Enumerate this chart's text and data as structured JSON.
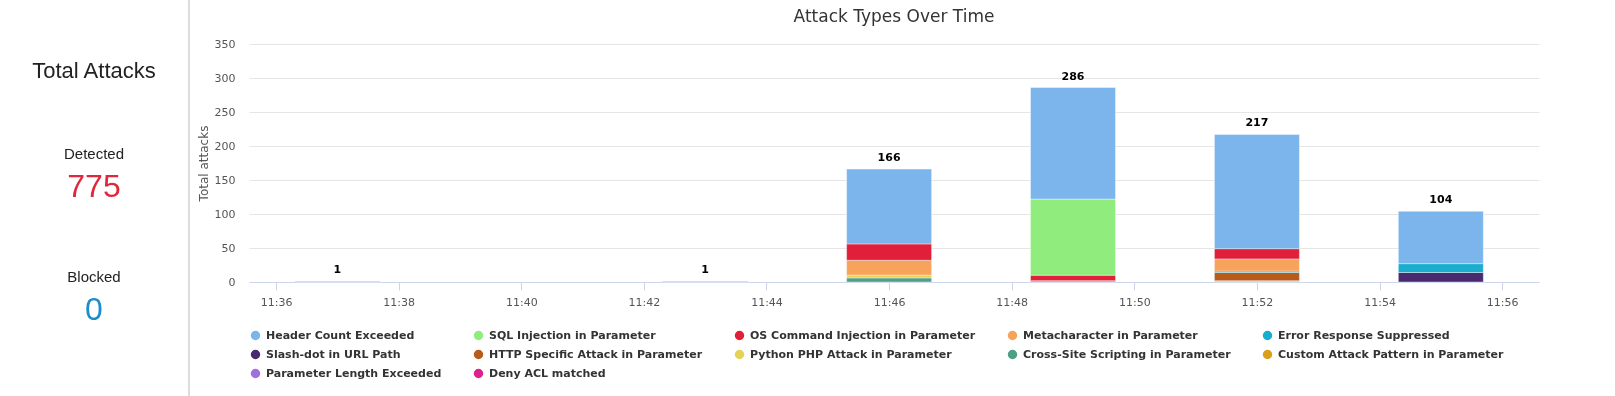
{
  "chart_data": [
    {
      "type": "other",
      "title": "Total Attacks",
      "annotations": [
        "Detected",
        "775",
        "Blocked",
        "0"
      ]
    },
    {
      "type": "bar",
      "title": "Attack Types Over Time",
      "ylabel": "Total attacks",
      "stacked": true,
      "x": [
        11.61667,
        11.71667,
        11.76667,
        11.81667,
        11.86667,
        11.91667
      ],
      "xlim": [
        11.594,
        11.942
      ],
      "xticks": [
        {
          "value": 11.6,
          "label": "11:36"
        },
        {
          "value": 11.63333,
          "label": "11:38"
        },
        {
          "value": 11.66667,
          "label": "11:40"
        },
        {
          "value": 11.7,
          "label": "11:42"
        },
        {
          "value": 11.73333,
          "label": "11:44"
        },
        {
          "value": 11.76667,
          "label": "11:46"
        },
        {
          "value": 11.8,
          "label": "11:48"
        },
        {
          "value": 11.83333,
          "label": "11:50"
        },
        {
          "value": 11.86667,
          "label": "11:52"
        },
        {
          "value": 11.9,
          "label": "11:54"
        },
        {
          "value": 11.93333,
          "label": "11:56"
        }
      ],
      "ylim": [
        0,
        350
      ],
      "yticks": [
        0,
        50,
        100,
        150,
        200,
        250,
        300,
        350
      ],
      "grid": "y",
      "legend": "bottom",
      "totals": [
        "1",
        "1",
        "166",
        "286",
        "217",
        "104"
      ],
      "series": [
        {
          "name": "Deny ACL matched",
          "color": "#e0208f",
          "values": [
            null,
            null,
            null,
            null,
            null,
            null
          ]
        },
        {
          "name": "Parameter Length Exceeded",
          "color": "#a36ee0",
          "values": [
            null,
            null,
            null,
            null,
            null,
            null
          ]
        },
        {
          "name": "Custom Attack Pattern in Parameter",
          "color": "#d9a01c",
          "values": [
            null,
            null,
            null,
            2,
            null,
            null
          ]
        },
        {
          "name": "Cross-Site Scripting in Parameter",
          "color": "#4f9e86",
          "values": [
            null,
            null,
            6,
            null,
            null,
            null
          ]
        },
        {
          "name": "Python PHP Attack in Parameter",
          "color": "#e4d354",
          "values": [
            null,
            null,
            4,
            null,
            2,
            null
          ]
        },
        {
          "name": "HTTP Specific Attack in Parameter",
          "color": "#b85a1b",
          "values": [
            null,
            null,
            null,
            null,
            12,
            null
          ]
        },
        {
          "name": "Slash-dot in URL Path",
          "color": "#492970",
          "values": [
            null,
            null,
            null,
            null,
            null,
            14
          ]
        },
        {
          "name": "Error Response Suppressed",
          "color": "#1aadce",
          "values": [
            null,
            null,
            null,
            null,
            2,
            13
          ]
        },
        {
          "name": "Metacharacter in Parameter",
          "color": "#f7a35c",
          "values": [
            null,
            null,
            22,
            null,
            18,
            null
          ]
        },
        {
          "name": "OS Command Injection in Parameter",
          "color": "#e0203a",
          "values": [
            null,
            null,
            24,
            8,
            15,
            null
          ]
        },
        {
          "name": "SQL Injection in Parameter",
          "color": "#90ed7d",
          "values": [
            null,
            null,
            null,
            112,
            null,
            null
          ]
        },
        {
          "name": "Header Count Exceeded",
          "color": "#7cb5ec",
          "values": [
            1,
            1,
            110,
            164,
            168,
            77
          ]
        }
      ]
    }
  ]
}
